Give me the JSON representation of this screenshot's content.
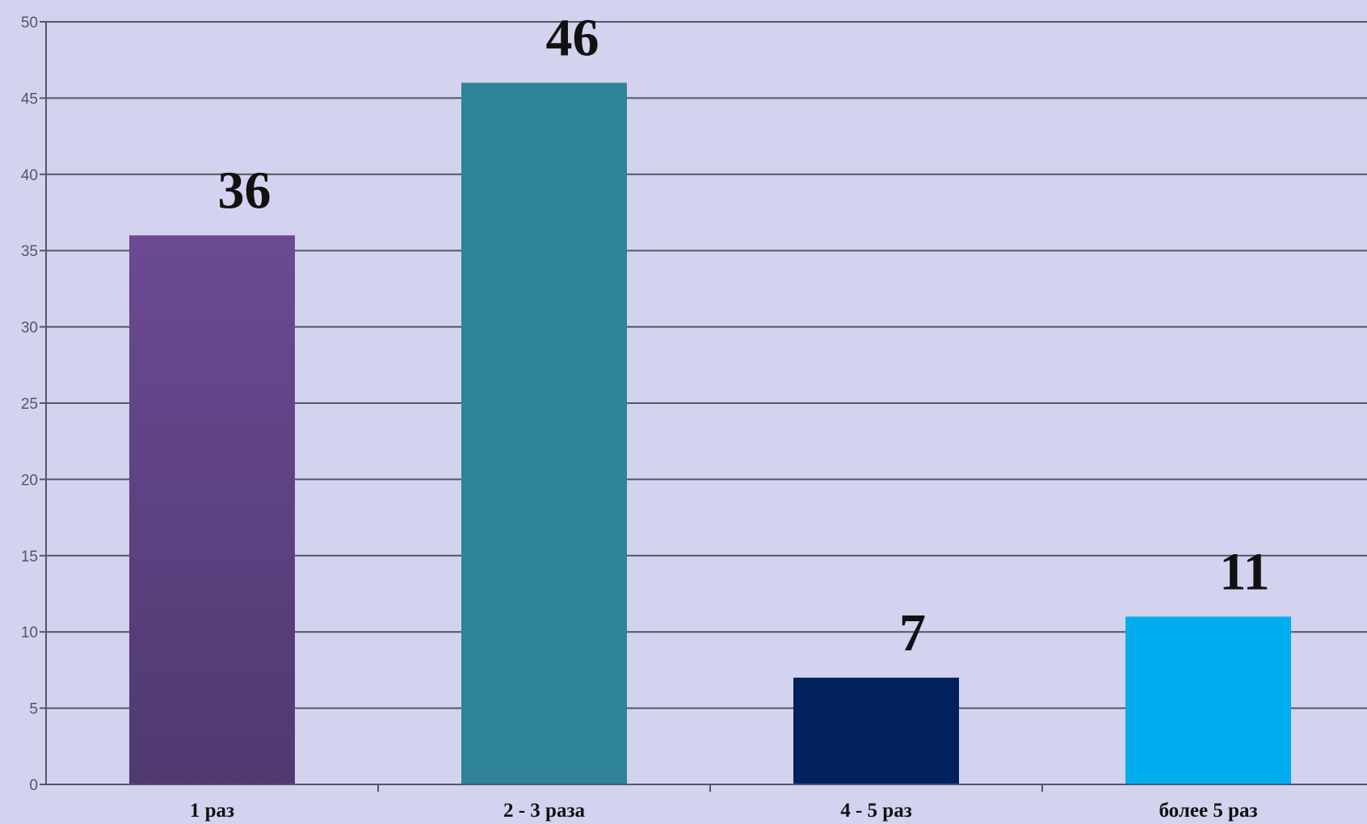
{
  "chart_data": {
    "type": "bar",
    "categories": [
      "1 раз",
      "2 - 3 раза",
      "4 - 5 раз",
      "более 5 раз"
    ],
    "values": [
      36,
      46,
      7,
      11
    ],
    "data_labels": [
      "36",
      "46",
      "7",
      "11"
    ],
    "ylim": [
      0,
      50
    ],
    "yticks": [
      0,
      5,
      10,
      15,
      20,
      25,
      30,
      35,
      40,
      45,
      50
    ],
    "grid": true,
    "legend": "none",
    "colors": {
      "background": "#d3d3ef",
      "gridline": "#555566",
      "bars": [
        {
          "top": "#6b4a93",
          "bottom": "#4f3a70"
        },
        {
          "top": "#2f8398",
          "bottom": "#2f8398"
        },
        {
          "top": "#00205e",
          "bottom": "#00205e"
        },
        {
          "top": "#00aeef",
          "bottom": "#00aeef"
        }
      ]
    }
  }
}
